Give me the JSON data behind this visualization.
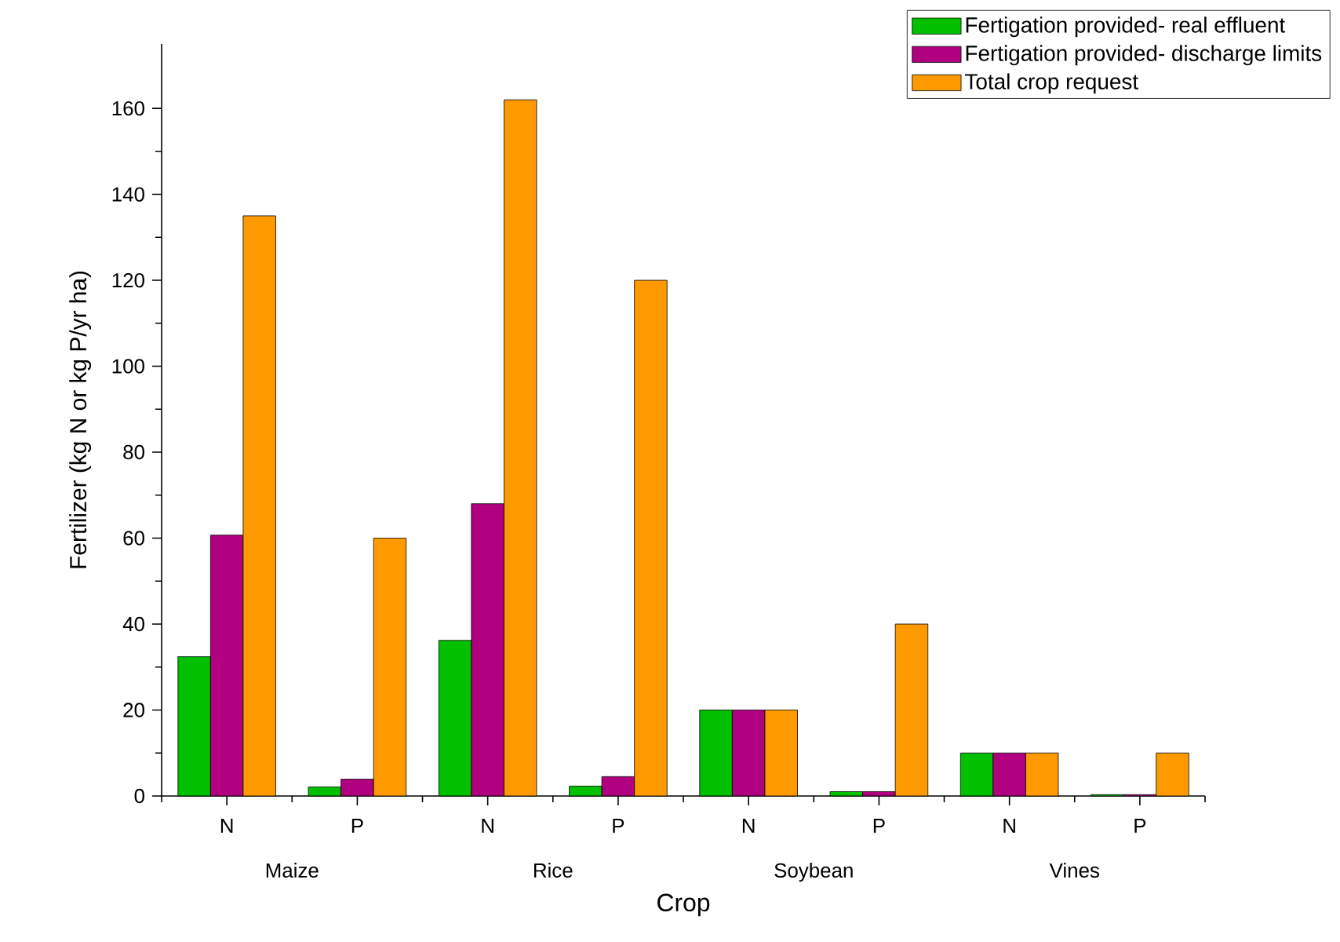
{
  "chart_data": {
    "type": "bar",
    "xlabel": "Crop",
    "ylabel": "Fertilizer (kg N or kg P/yr ha)",
    "categories": [
      "N",
      "P",
      "N",
      "P",
      "N",
      "P",
      "N",
      "P"
    ],
    "annotations": [
      "Maize",
      "Rice",
      "Soybean",
      "Vines"
    ],
    "series": [
      {
        "name": "Fertigation provided- real effluent",
        "color": "#00c000",
        "values": [
          32.4,
          2.1,
          36.2,
          2.3,
          20,
          1,
          10,
          0.3
        ]
      },
      {
        "name": "Fertigation provided- discharge limits",
        "color": "#b00080",
        "values": [
          60.7,
          3.9,
          68,
          4.5,
          20,
          1,
          10,
          0.3
        ]
      },
      {
        "name": "Total crop request",
        "color": "#ff9900",
        "values": [
          135,
          60,
          162,
          120,
          20,
          40,
          10,
          10
        ]
      }
    ],
    "ylim": [
      0,
      175
    ],
    "yticks": [
      0,
      20,
      40,
      60,
      80,
      100,
      120,
      140,
      160
    ],
    "legend": "top right"
  }
}
